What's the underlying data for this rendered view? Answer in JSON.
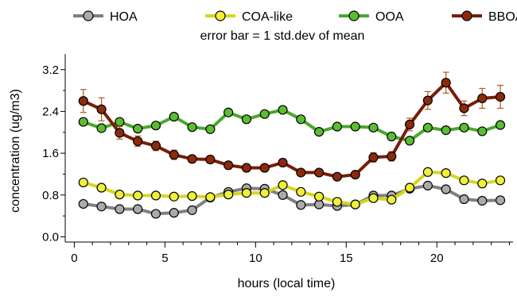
{
  "chart_data": {
    "type": "line",
    "annotation": "error bar = 1 std.dev of mean",
    "xlabel": "hours (local time)",
    "ylabel": "concentration (ug/m3)",
    "xlim": [
      -0.5,
      24.2
    ],
    "ylim": [
      -0.1,
      3.5
    ],
    "xticks": [
      0,
      5,
      10,
      15,
      20
    ],
    "yticks": [
      0.0,
      0.8,
      1.6,
      2.4,
      3.2
    ],
    "ytick_labels": [
      "0.0",
      "0.8",
      "1.6",
      "2.4",
      "3.2"
    ],
    "legend_position": "top",
    "x": [
      0.5,
      1.5,
      2.5,
      3.5,
      4.5,
      5.5,
      6.5,
      7.5,
      8.5,
      9.5,
      10.5,
      11.5,
      12.5,
      13.5,
      14.5,
      15.5,
      16.5,
      17.5,
      18.5,
      19.5,
      20.5,
      21.5,
      22.5,
      23.5
    ],
    "series": [
      {
        "name": "HOA",
        "line_color": "#808080",
        "marker_color": "#aaaaaa",
        "values": [
          0.63,
          0.58,
          0.53,
          0.53,
          0.44,
          0.46,
          0.51,
          0.75,
          0.86,
          0.93,
          0.92,
          0.8,
          0.61,
          0.62,
          0.59,
          0.62,
          0.79,
          0.79,
          0.92,
          0.98,
          0.91,
          0.72,
          0.69,
          0.7
        ]
      },
      {
        "name": "COA-like",
        "line_color": "#d4d71c",
        "marker_color": "#f0f03a",
        "values": [
          1.04,
          0.94,
          0.81,
          0.79,
          0.79,
          0.77,
          0.78,
          0.76,
          0.81,
          0.84,
          0.84,
          0.99,
          0.86,
          0.77,
          0.67,
          0.62,
          0.74,
          0.71,
          0.94,
          1.24,
          1.22,
          1.08,
          1.02,
          1.08
        ]
      },
      {
        "name": "OOA",
        "line_color": "#4aa82a",
        "marker_color": "#5bbd33",
        "values": [
          2.2,
          2.08,
          2.2,
          2.07,
          2.13,
          2.3,
          2.1,
          2.06,
          2.38,
          2.25,
          2.35,
          2.43,
          2.25,
          2.01,
          2.11,
          2.11,
          2.09,
          1.92,
          1.84,
          2.09,
          2.04,
          2.09,
          2.02,
          2.14
        ]
      },
      {
        "name": "BBOA",
        "line_color": "#7a1c06",
        "marker_color": "#8c2a0c",
        "error_color": "#b05a1c",
        "values": [
          2.6,
          2.44,
          1.99,
          1.83,
          1.74,
          1.57,
          1.49,
          1.48,
          1.37,
          1.32,
          1.32,
          1.42,
          1.23,
          1.23,
          1.15,
          1.19,
          1.52,
          1.54,
          2.15,
          2.61,
          2.95,
          2.46,
          2.65,
          2.68
        ],
        "errors": [
          0.22,
          0.22,
          0.12,
          0.1,
          0.09,
          0.09,
          0.07,
          0.07,
          0.07,
          0.07,
          0.07,
          0.07,
          0.06,
          0.06,
          0.06,
          0.06,
          0.09,
          0.09,
          0.12,
          0.17,
          0.2,
          0.14,
          0.19,
          0.22
        ]
      }
    ]
  }
}
